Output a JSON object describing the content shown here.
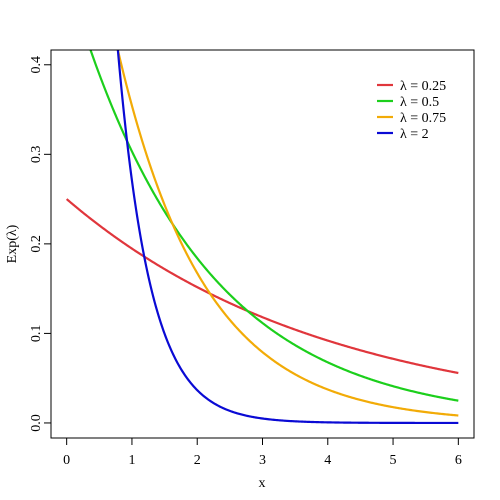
{
  "chart_data": {
    "type": "line",
    "title": "",
    "xlabel": "x",
    "ylabel": "Exp(λ)",
    "xlim": [
      -0.24,
      6.24
    ],
    "ylim": [
      -0.0168,
      0.4165
    ],
    "x_ticks": [
      0,
      1,
      2,
      3,
      4,
      5,
      6
    ],
    "x_tick_labels": [
      "0",
      "1",
      "2",
      "3",
      "4",
      "5",
      "6"
    ],
    "y_ticks": [
      0.0,
      0.1,
      0.2,
      0.3,
      0.4
    ],
    "y_tick_labels": [
      "0.0",
      "0.1",
      "0.2",
      "0.3",
      "0.4"
    ],
    "grid": false,
    "legend_position": "top-right",
    "x_range": [
      0,
      6
    ],
    "series": [
      {
        "name": "λ = 0.25",
        "rate": 0.25,
        "color": "#e0363c"
      },
      {
        "name": "λ = 0.5",
        "rate": 0.5,
        "color": "#1ccf1c"
      },
      {
        "name": "λ = 0.75",
        "rate": 0.75,
        "color": "#f2ab07"
      },
      {
        "name": "λ = 2",
        "rate": 2,
        "color": "#0a0ad4"
      }
    ]
  }
}
